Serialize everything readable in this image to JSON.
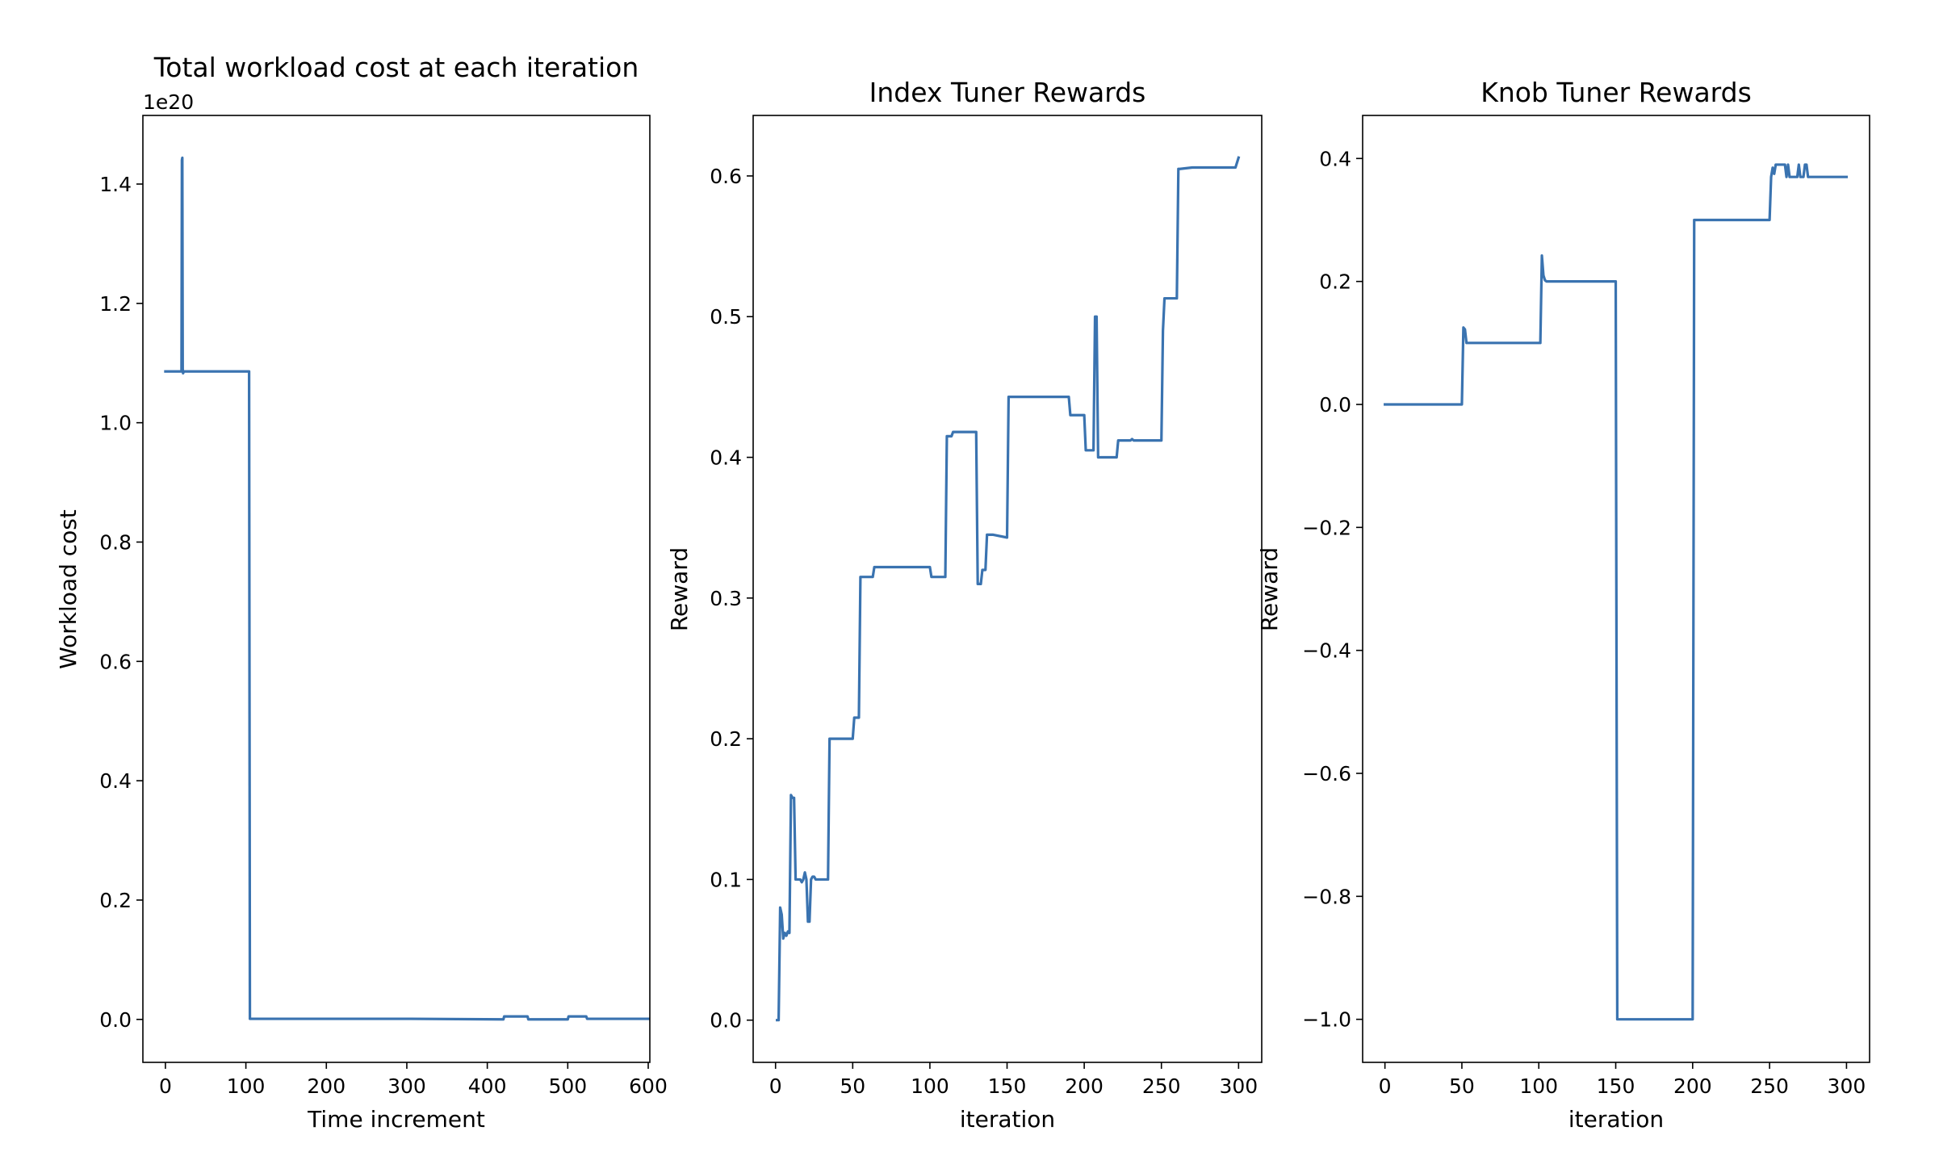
{
  "colors": {
    "series": "#3a73b0"
  },
  "chart_data": [
    {
      "type": "line",
      "title": "Total workload cost at each iteration",
      "xlabel": "Time increment",
      "ylabel": "Workload cost",
      "y_offset_label": "1e20",
      "xlim": [
        -28,
        602
      ],
      "ylim": [
        -0.072,
        1.515
      ],
      "xticks": [
        0,
        100,
        200,
        300,
        400,
        500,
        600
      ],
      "xtick_labels": [
        "0",
        "100",
        "200",
        "300",
        "400",
        "500",
        "600"
      ],
      "yticks": [
        0.0,
        0.2,
        0.4,
        0.6,
        0.8,
        1.0,
        1.2,
        1.4
      ],
      "ytick_labels": [
        "0.0",
        "0.2",
        "0.4",
        "0.6",
        "0.8",
        "1.0",
        "1.2",
        "1.4"
      ],
      "grid": false,
      "series": [
        {
          "x": [
            0,
            20,
            20.5,
            21,
            21.5,
            22,
            22.5,
            23,
            104,
            105,
            305,
            420,
            421,
            450,
            451,
            500,
            501,
            523,
            524,
            600
          ],
          "y": [
            1.086,
            1.086,
            1.44,
            1.444,
            1.09,
            1.083,
            1.085,
            1.086,
            1.086,
            0.001,
            0.001,
            0.0,
            0.005,
            0.005,
            0.0,
            0.0,
            0.005,
            0.005,
            0.001,
            0.001
          ]
        }
      ]
    },
    {
      "type": "line",
      "title": "Index Tuner Rewards",
      "xlabel": "iteration",
      "ylabel": "Reward",
      "xlim": [
        -14.5,
        315
      ],
      "ylim": [
        -0.03,
        0.643
      ],
      "xticks": [
        0,
        50,
        100,
        150,
        200,
        250,
        300
      ],
      "xtick_labels": [
        "0",
        "50",
        "100",
        "150",
        "200",
        "250",
        "300"
      ],
      "yticks": [
        0.0,
        0.1,
        0.2,
        0.3,
        0.4,
        0.5,
        0.6
      ],
      "ytick_labels": [
        "0.0",
        "0.1",
        "0.2",
        "0.3",
        "0.4",
        "0.5",
        "0.6"
      ],
      "grid": false,
      "series": [
        {
          "x": [
            1,
            2,
            3,
            4,
            5,
            6,
            7,
            8,
            9,
            10,
            11,
            12,
            13,
            14,
            15,
            16,
            17,
            18,
            19,
            20,
            21,
            22,
            23,
            24,
            25,
            26,
            28,
            30,
            32,
            34,
            35,
            40,
            45,
            50,
            51,
            52,
            54,
            55,
            56,
            60,
            63,
            64,
            70,
            80,
            90,
            100,
            101,
            102,
            110,
            111,
            112,
            114,
            115,
            116,
            120,
            125,
            130,
            131,
            132,
            133,
            134,
            135,
            136,
            137,
            140,
            141,
            150,
            151,
            152,
            153,
            160,
            170,
            180,
            190,
            191,
            192,
            200,
            201,
            202,
            206,
            207,
            208,
            209,
            210,
            220,
            221,
            222,
            225,
            230,
            231,
            232,
            240,
            250,
            251,
            252,
            253,
            260,
            261,
            262,
            270,
            280,
            297,
            298,
            300
          ],
          "y": [
            0.0,
            0.0,
            0.08,
            0.075,
            0.058,
            0.062,
            0.06,
            0.063,
            0.062,
            0.16,
            0.158,
            0.158,
            0.1,
            0.1,
            0.1,
            0.1,
            0.098,
            0.1,
            0.105,
            0.1,
            0.07,
            0.07,
            0.1,
            0.102,
            0.102,
            0.1,
            0.1,
            0.1,
            0.1,
            0.1,
            0.2,
            0.2,
            0.2,
            0.2,
            0.215,
            0.215,
            0.215,
            0.315,
            0.315,
            0.315,
            0.315,
            0.322,
            0.322,
            0.322,
            0.322,
            0.322,
            0.315,
            0.315,
            0.315,
            0.415,
            0.415,
            0.415,
            0.418,
            0.418,
            0.418,
            0.418,
            0.418,
            0.31,
            0.31,
            0.31,
            0.32,
            0.32,
            0.32,
            0.345,
            0.345,
            0.345,
            0.343,
            0.443,
            0.443,
            0.443,
            0.443,
            0.443,
            0.443,
            0.443,
            0.43,
            0.43,
            0.43,
            0.405,
            0.405,
            0.405,
            0.5,
            0.5,
            0.4,
            0.4,
            0.4,
            0.4,
            0.412,
            0.412,
            0.412,
            0.413,
            0.412,
            0.412,
            0.412,
            0.49,
            0.513,
            0.513,
            0.513,
            0.605,
            0.605,
            0.606,
            0.606,
            0.606,
            0.606,
            0.613
          ]
        }
      ]
    },
    {
      "type": "line",
      "title": "Knob Tuner Rewards",
      "xlabel": "iteration",
      "ylabel": "Reward",
      "xlim": [
        -14.5,
        315
      ],
      "ylim": [
        -1.07,
        0.47
      ],
      "xticks": [
        0,
        50,
        100,
        150,
        200,
        250,
        300
      ],
      "xtick_labels": [
        "0",
        "50",
        "100",
        "150",
        "200",
        "250",
        "300"
      ],
      "yticks": [
        -1.0,
        -0.8,
        -0.6,
        -0.4,
        -0.2,
        0.0,
        0.2,
        0.4
      ],
      "ytick_labels": [
        "−1.0",
        "−0.8",
        "−0.6",
        "−0.4",
        "−0.2",
        "0.0",
        "0.2",
        "0.4"
      ],
      "grid": false,
      "series": [
        {
          "x": [
            0,
            50,
            51,
            52,
            53,
            100,
            101,
            102,
            103,
            104,
            105,
            150,
            151,
            200,
            201,
            250,
            251,
            252,
            253,
            254,
            255,
            260,
            261,
            262,
            263,
            264,
            265,
            268,
            269,
            270,
            271,
            272,
            273,
            274,
            275,
            276,
            277,
            280,
            300
          ],
          "y": [
            0.0,
            0.0,
            0.125,
            0.122,
            0.1,
            0.1,
            0.1,
            0.242,
            0.21,
            0.202,
            0.2,
            0.2,
            -1.0,
            -1.0,
            0.3,
            0.3,
            0.37,
            0.385,
            0.375,
            0.39,
            0.39,
            0.39,
            0.37,
            0.39,
            0.37,
            0.37,
            0.37,
            0.37,
            0.39,
            0.37,
            0.37,
            0.37,
            0.39,
            0.39,
            0.37,
            0.37,
            0.37,
            0.37,
            0.37
          ]
        }
      ]
    }
  ]
}
